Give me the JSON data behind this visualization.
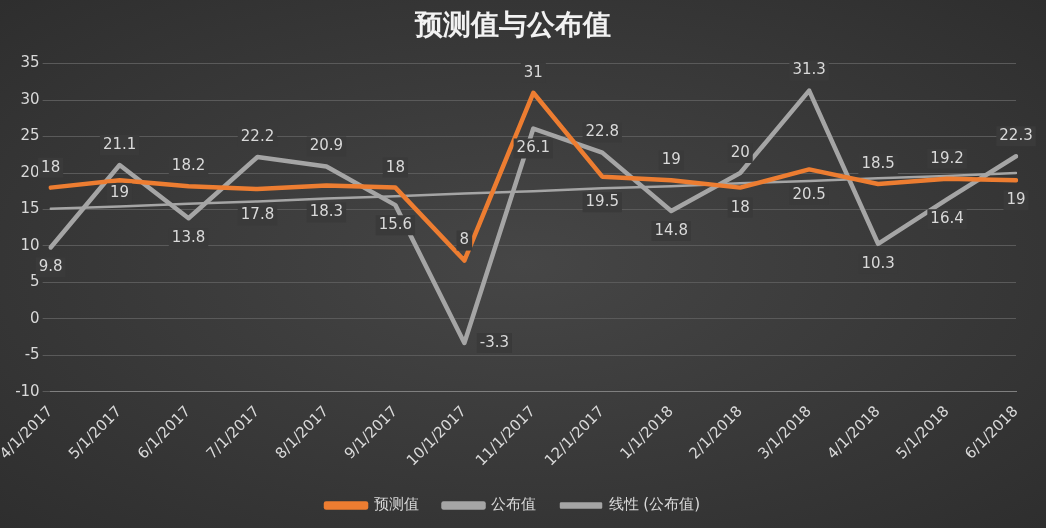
{
  "chart_data": {
    "type": "line",
    "title": "预测值与公布值",
    "categories": [
      "4/1/2017",
      "5/1/2017",
      "6/1/2017",
      "7/1/2017",
      "8/1/2017",
      "9/1/2017",
      "10/1/2017",
      "11/1/2017",
      "12/1/2017",
      "1/1/2018",
      "2/1/2018",
      "3/1/2018",
      "4/1/2018",
      "5/1/2018",
      "6/1/2018"
    ],
    "series": [
      {
        "name": "预测值",
        "color": "#ed7d31",
        "values": [
          18,
          19,
          18.2,
          17.8,
          18.3,
          18,
          8,
          31,
          19.5,
          19,
          18,
          20.5,
          18.5,
          19.2,
          19
        ],
        "value_labels": [
          "18",
          "19",
          "18.2",
          "17.8",
          "18.3",
          "18",
          "8",
          "31",
          "19.5",
          "19",
          "18",
          "20.5",
          "18.5",
          "19.2",
          "19"
        ]
      },
      {
        "name": "公布值",
        "color": "#a5a5a5",
        "values": [
          9.8,
          21.1,
          13.8,
          22.2,
          20.9,
          15.6,
          -3.3,
          26.1,
          22.8,
          14.8,
          20,
          31.3,
          10.3,
          16.4,
          22.3
        ],
        "value_labels": [
          "9.8",
          "21.1",
          "13.8",
          "22.2",
          "20.9",
          "15.6",
          "-3.3",
          "26.1",
          "22.8",
          "14.8",
          "20",
          "31.3",
          "10.3",
          "16.4",
          "22.3"
        ]
      },
      {
        "name": "线性 (公布值)",
        "type": "line",
        "color": "#a5a5a5",
        "values": [
          15.1,
          15.4,
          15.8,
          16.1,
          16.5,
          16.8,
          17.2,
          17.5,
          17.9,
          18.2,
          18.6,
          18.9,
          19.3,
          19.6,
          20.0
        ]
      }
    ],
    "ylim": [
      -10,
      35
    ],
    "yticks": [
      -10,
      -5,
      0,
      5,
      10,
      15,
      20,
      25,
      30,
      35
    ],
    "grid": "y",
    "legend": "bottom",
    "marker": "none",
    "line_style": "solid"
  }
}
